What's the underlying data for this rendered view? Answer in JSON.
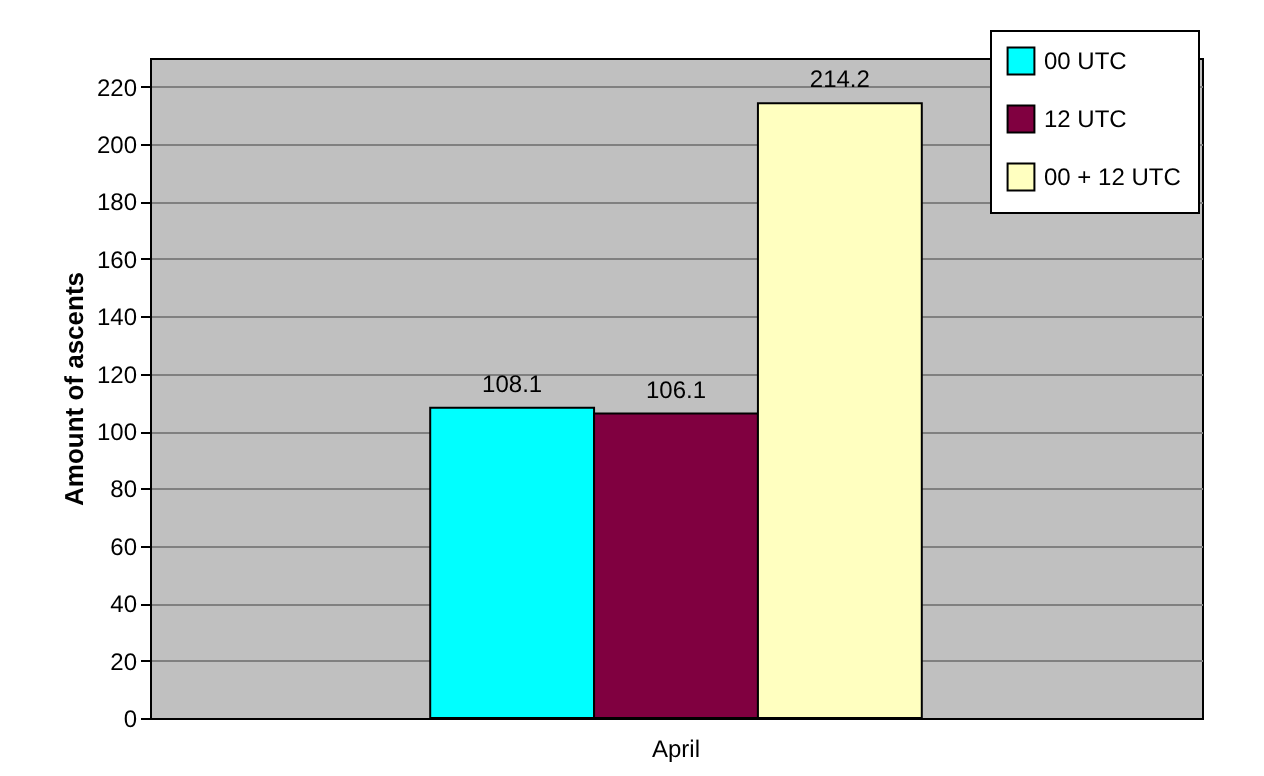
{
  "chart_data": {
    "type": "bar",
    "ylabel": "Amount of ascents",
    "categories": [
      "April"
    ],
    "series": [
      {
        "name": "00 UTC",
        "color": "#00ffff",
        "values": [
          108.1
        ]
      },
      {
        "name": "12 UTC",
        "color": "#800040",
        "values": [
          106.1
        ]
      },
      {
        "name": "00 + 12 UTC",
        "color": "#ffffc0",
        "values": [
          214.2
        ]
      }
    ],
    "ylim": [
      0,
      230
    ],
    "yticks": [
      0,
      20,
      40,
      60,
      80,
      100,
      120,
      140,
      160,
      180,
      200,
      220
    ],
    "grid": "y",
    "legend": "top right",
    "data_labels": true
  }
}
